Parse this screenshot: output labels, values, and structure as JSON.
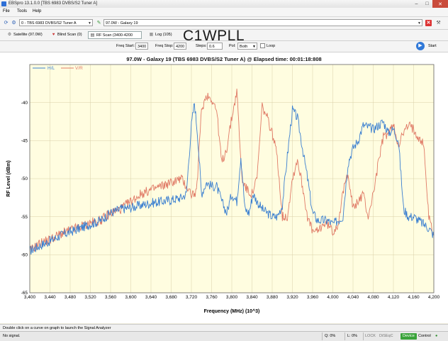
{
  "window": {
    "title": "EBSpro 13.1.0.0 [TBS 6983 DVBS/S2 Tuner A]",
    "buttons": {
      "minimize": "–",
      "maximize": "□",
      "close": "✕"
    }
  },
  "menu": {
    "items": [
      "File",
      "Tools",
      "Help"
    ]
  },
  "toolbar1": {
    "tuner_combo": "0 - TBS 6983 DVBS/S2 Tuner A",
    "satellite_combo": "97.0W - Galaxy 19",
    "remove_label": "✕"
  },
  "tabs": [
    {
      "label": "Satellite (97.0W)",
      "icon": "satellite-icon"
    },
    {
      "label": "Blind Scan (0)",
      "icon": "heart-icon"
    },
    {
      "label": "RF Scan (3400-4200 Both)",
      "icon": "rf-icon"
    },
    {
      "label": "Log (105)",
      "icon": "log-icon"
    }
  ],
  "watermark": "C1WPLL",
  "controls": {
    "freq_start_label": "Freq Start:",
    "freq_start_value": "3400",
    "freq_stop_label": "Freq Stop:",
    "freq_stop_value": "4200",
    "steps_label": "Steps:",
    "steps_value": "0.6",
    "pol_label": "Pol:",
    "pol_value": "Both",
    "loop_label": "Loop",
    "start_label": "Start"
  },
  "chart_data": {
    "type": "line",
    "title": "97.0W - Galaxy 19 (TBS 6983 DVBS/S2 Tuner A) @ Elapsed time: 00:01:18:808",
    "xlabel": "Frequency (MHz) (10^3)",
    "ylabel": "RF Level (dBm)",
    "xlim": [
      3400,
      4200
    ],
    "ylim": [
      -65,
      -35
    ],
    "x_ticks": [
      "3,400",
      "3,440",
      "3,480",
      "3,520",
      "3,560",
      "3,600",
      "3,640",
      "3,680",
      "3,720",
      "3,760",
      "3,800",
      "3,840",
      "3,880",
      "3,920",
      "3,960",
      "4,000",
      "4,040",
      "4,080",
      "4,120",
      "4,160",
      "4,200"
    ],
    "y_ticks": [
      "-40",
      "-45",
      "-50",
      "-55",
      "-60",
      "-65"
    ],
    "legend_position": "top-left",
    "colors": {
      "hl": "#3a7fd0",
      "vr": "#e07a66",
      "plot_bg": "#fffde0",
      "grid": "#d8d0a8"
    },
    "series": [
      {
        "name": "H/L",
        "x": [
          3400,
          3420,
          3440,
          3460,
          3480,
          3500,
          3520,
          3540,
          3560,
          3580,
          3600,
          3620,
          3640,
          3660,
          3680,
          3700,
          3710,
          3720,
          3726,
          3732,
          3740,
          3750,
          3760,
          3770,
          3780,
          3790,
          3800,
          3810,
          3818,
          3826,
          3834,
          3842,
          3850,
          3860,
          3870,
          3880,
          3890,
          3900,
          3910,
          3920,
          3930,
          3940,
          3950,
          3960,
          3970,
          3980,
          3990,
          4000,
          4010,
          4020,
          4030,
          4040,
          4050,
          4060,
          4070,
          4080,
          4090,
          4100,
          4110,
          4120,
          4130,
          4140,
          4150,
          4160,
          4170,
          4180,
          4190,
          4200
        ],
        "values": [
          -59.5,
          -58.8,
          -58.2,
          -57.5,
          -57,
          -56.5,
          -56,
          -55.5,
          -54.5,
          -54,
          -53.8,
          -53.5,
          -53.2,
          -53,
          -52.8,
          -52.5,
          -52,
          -43,
          -40,
          -44,
          -52,
          -50.5,
          -51,
          -51,
          -53,
          -54.5,
          -52,
          -53,
          -47,
          -54,
          -54.5,
          -52,
          -53,
          -54,
          -54.5,
          -55,
          -55,
          -53.5,
          -47,
          -41,
          -42,
          -46,
          -50,
          -54.5,
          -55.5,
          -55.5,
          -55.5,
          -56,
          -55.5,
          -55,
          -48,
          -46,
          -45,
          -43,
          -43.2,
          -43.5,
          -43,
          -42.5,
          -44,
          -43.5,
          -45,
          -54,
          -55,
          -55,
          -55.5,
          -56,
          -56.5,
          -57.5
        ]
      },
      {
        "name": "V/R",
        "x": [
          3400,
          3420,
          3440,
          3460,
          3480,
          3500,
          3520,
          3540,
          3560,
          3580,
          3600,
          3620,
          3640,
          3660,
          3680,
          3700,
          3710,
          3720,
          3730,
          3740,
          3750,
          3760,
          3770,
          3780,
          3790,
          3800,
          3810,
          3820,
          3830,
          3840,
          3850,
          3860,
          3870,
          3880,
          3890,
          3900,
          3910,
          3920,
          3930,
          3940,
          3950,
          3960,
          3970,
          3980,
          3990,
          4000,
          4010,
          4020,
          4030,
          4040,
          4050,
          4060,
          4070,
          4080,
          4090,
          4100,
          4110,
          4120,
          4130,
          4140,
          4150,
          4160,
          4170,
          4180,
          4190,
          4200
        ],
        "values": [
          -59.5,
          -58.5,
          -58,
          -57.3,
          -56.8,
          -56.3,
          -55.8,
          -55.5,
          -54.5,
          -54,
          -53,
          -52,
          -51.5,
          -51,
          -50.5,
          -50,
          -51,
          -52,
          -52,
          -41,
          -39,
          -39.5,
          -41,
          -48,
          -46,
          -42,
          -38.5,
          -50,
          -51.5,
          -52,
          -50,
          -40.5,
          -42,
          -44,
          -47,
          -55,
          -55,
          -50,
          -47.5,
          -51,
          -55,
          -57,
          -57,
          -56,
          -56,
          -57,
          -56,
          -52,
          -49,
          -54,
          -53,
          -52,
          -55,
          -52,
          -48,
          -44.5,
          -44,
          -43,
          -45.5,
          -44,
          -43,
          -43.5,
          -44.5,
          -45.5,
          -55,
          -57.5
        ]
      }
    ]
  },
  "hint_text": "Double click on a curve on graph to launch the Signal Analyzer",
  "status": {
    "message": "No signal.",
    "q": "Q: 0%",
    "l": "L: 0%",
    "lock": "LOCK",
    "diseqc": "DiSEqC",
    "device": "Device",
    "control": "Control"
  }
}
